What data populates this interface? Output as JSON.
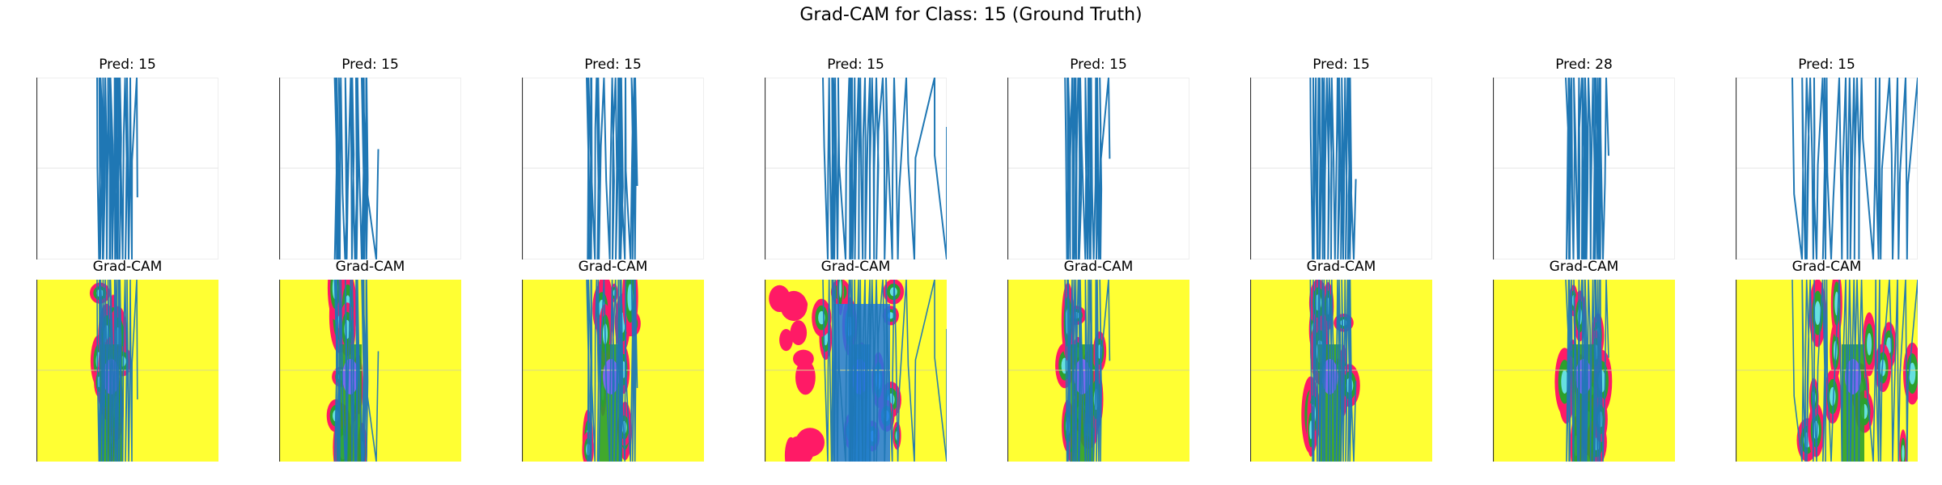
{
  "suptitle": "Grad-CAM for Class: 15 (Ground Truth)",
  "colors": {
    "signal": "#1f77b4",
    "cam_background": "#ffff33",
    "cam_high": "#ff1a66",
    "cam_mid": "#2ca02c",
    "cam_peak": "#7b68ee",
    "cam_cyan": "#66e0e0"
  },
  "chart_data": [
    {
      "type": "line",
      "title": "Pred: 15",
      "cam_title": "Grad-CAM",
      "xlim": [
        0,
        225
      ],
      "ylim": [
        0,
        225
      ],
      "line_x": [
        75,
        78,
        82,
        110,
        112,
        114,
        116,
        118,
        124
      ],
      "spike_band": [
        75,
        110
      ],
      "y_gridline": 112,
      "axis_line": "left"
    },
    {
      "type": "line",
      "title": "Pred: 15",
      "cam_title": "Grad-CAM",
      "xlim": [
        0,
        225
      ],
      "ylim": [
        0,
        225
      ],
      "line_x": [
        70,
        75,
        95,
        102,
        108,
        120
      ],
      "spike_band": [
        68,
        108
      ],
      "y_gridline": 112,
      "axis_line": "left"
    },
    {
      "type": "line",
      "title": "Pred: 15",
      "cam_title": "Grad-CAM",
      "xlim": [
        0,
        225
      ],
      "ylim": [
        0,
        225
      ],
      "line_x": [
        80,
        86,
        112,
        116,
        122,
        128,
        140
      ],
      "spike_band": [
        80,
        140
      ],
      "y_gridline": 112,
      "axis_line": "left"
    },
    {
      "type": "line",
      "title": "Pred: 15",
      "cam_title": "Grad-CAM",
      "xlim": [
        0,
        225
      ],
      "ylim": [
        0,
        225
      ],
      "line_x": [
        72,
        78,
        84,
        90,
        100,
        108,
        116,
        124,
        130,
        138,
        150,
        160,
        175,
        185,
        210,
        225
      ],
      "spike_band": [
        70,
        165
      ],
      "y_gridline": 112,
      "axis_line": "left"
    },
    {
      "type": "line",
      "title": "Pred: 15",
      "cam_title": "Grad-CAM",
      "xlim": [
        0,
        225
      ],
      "ylim": [
        0,
        225
      ],
      "line_x": [
        75,
        80,
        90,
        100,
        110,
        115,
        125
      ],
      "spike_band": [
        70,
        115
      ],
      "y_gridline": 112,
      "axis_line": "left"
    },
    {
      "type": "line",
      "title": "Pred: 15",
      "cam_title": "Grad-CAM",
      "xlim": [
        0,
        225
      ],
      "ylim": [
        0,
        225
      ],
      "line_x": [
        78,
        86,
        92,
        100,
        108,
        118,
        122,
        128
      ],
      "spike_band": [
        72,
        125
      ],
      "y_gridline": 112,
      "axis_line": "left"
    },
    {
      "type": "line",
      "title": "Pred: 28",
      "cam_title": "Grad-CAM",
      "xlim": [
        0,
        225
      ],
      "ylim": [
        0,
        225
      ],
      "line_x": [
        90,
        95,
        100,
        110,
        118,
        126,
        132,
        136,
        140
      ],
      "spike_band": [
        88,
        136
      ],
      "y_gridline": 112,
      "axis_line": "left"
    },
    {
      "type": "line",
      "title": "Pred: 15",
      "cam_title": "Grad-CAM",
      "xlim": [
        0,
        225
      ],
      "ylim": [
        0,
        225
      ],
      "line_x": [
        70,
        82,
        100,
        110,
        118,
        128,
        136,
        150,
        170,
        190,
        200,
        210,
        225
      ],
      "spike_band": [
        70,
        220
      ],
      "y_gridline": 112,
      "axis_line": "left"
    }
  ]
}
